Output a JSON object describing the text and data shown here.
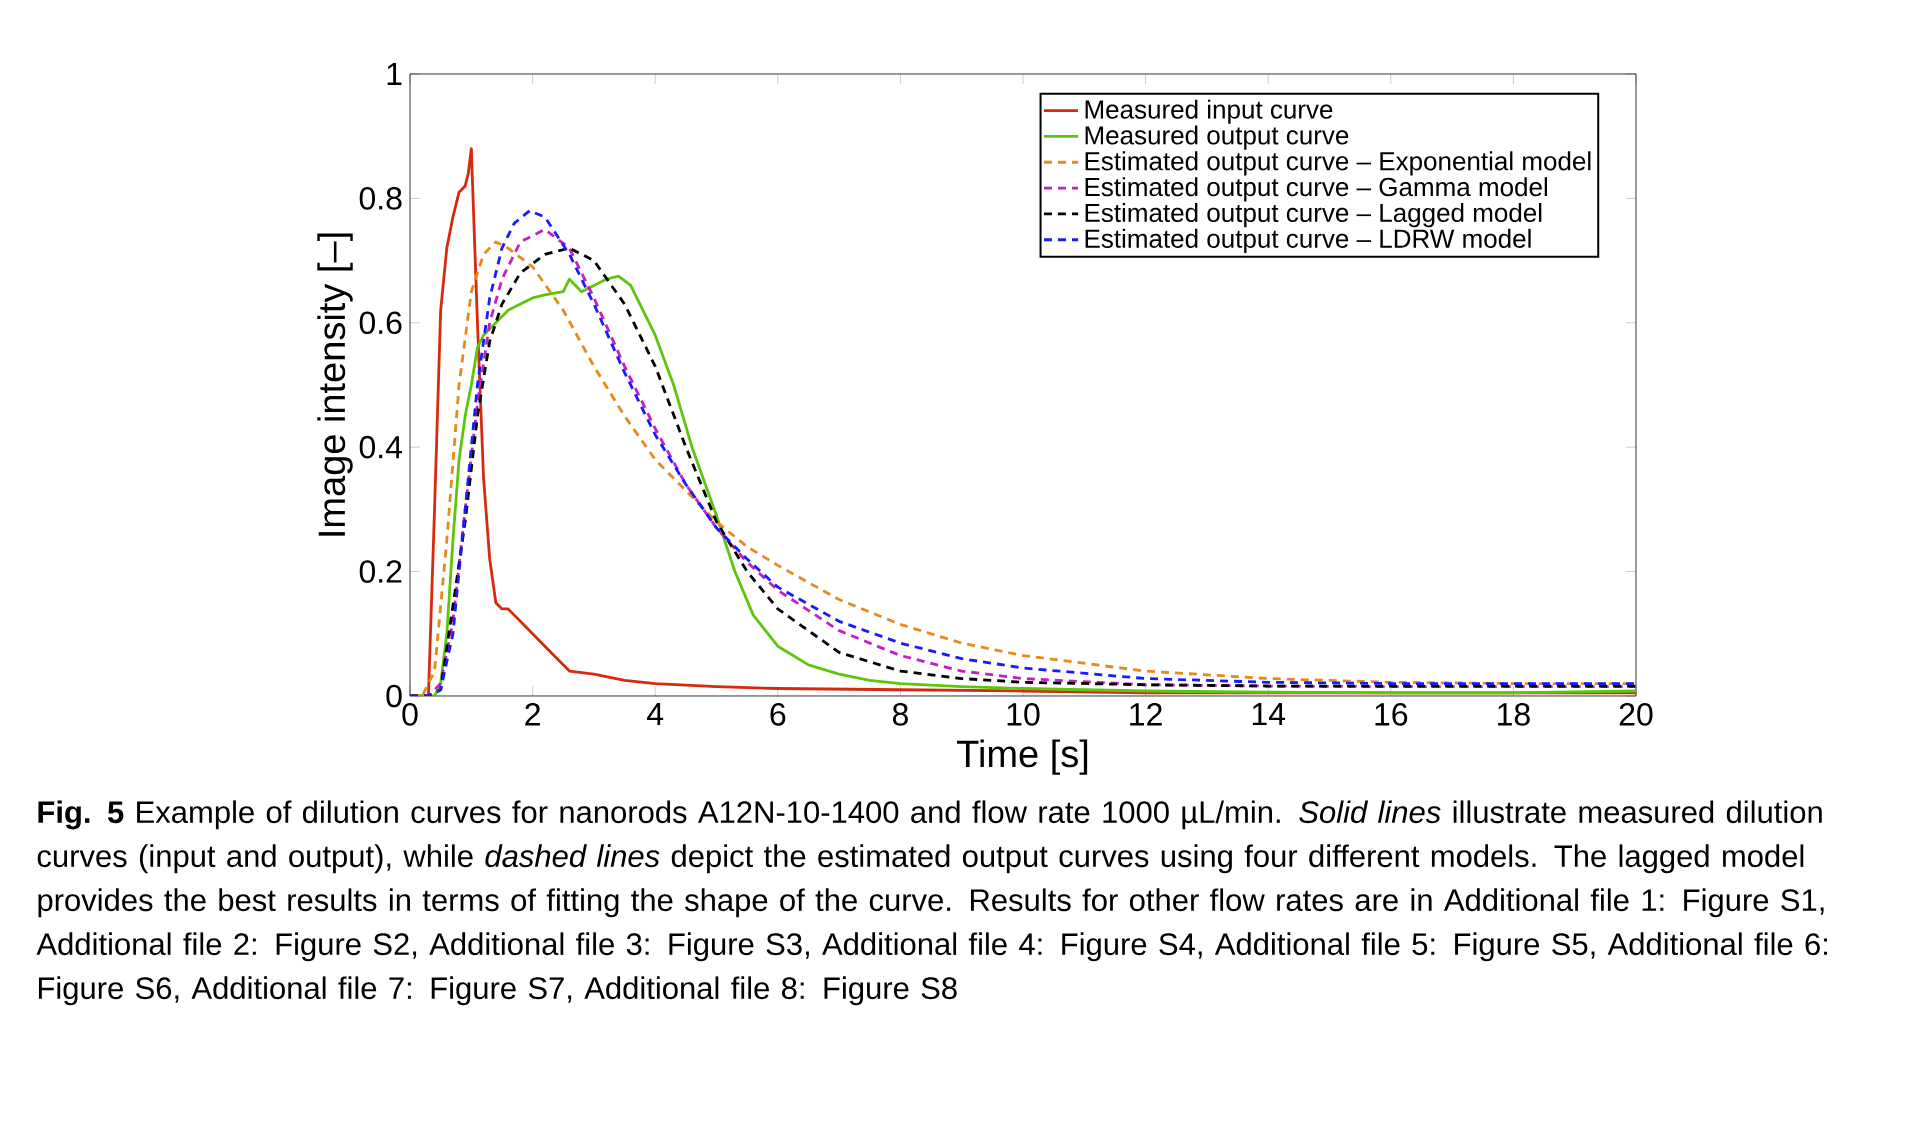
{
  "chart_data": {
    "type": "line",
    "xlabel": "Time [s]",
    "ylabel": "Image intensity [–]",
    "xlim": [
      0,
      20
    ],
    "ylim": [
      0,
      1
    ],
    "xticks": [
      0,
      2,
      4,
      6,
      8,
      10,
      12,
      14,
      16,
      18,
      20
    ],
    "yticks": [
      0,
      0.2,
      0.4,
      0.6,
      0.8,
      1
    ],
    "legend": "top right",
    "marker": "none",
    "series": [
      {
        "name": "Measured input curve",
        "color": "#d62a0e",
        "line_style": "solid",
        "x": [
          0,
          0.3,
          0.4,
          0.5,
          0.6,
          0.7,
          0.8,
          0.9,
          0.95,
          1.0,
          1.1,
          1.2,
          1.3,
          1.4,
          1.5,
          1.6,
          1.7,
          1.8,
          2.0,
          2.3,
          2.6,
          3.0,
          3.5,
          4,
          5,
          6,
          8,
          10,
          12,
          15,
          20
        ],
        "values": [
          0,
          0,
          0.3,
          0.62,
          0.72,
          0.77,
          0.81,
          0.82,
          0.84,
          0.88,
          0.6,
          0.35,
          0.22,
          0.15,
          0.14,
          0.14,
          0.13,
          0.12,
          0.1,
          0.07,
          0.04,
          0.035,
          0.025,
          0.02,
          0.015,
          0.012,
          0.01,
          0.008,
          0.005,
          0.005,
          0.005
        ]
      },
      {
        "name": "Measured output curve",
        "color": "#5ec50d",
        "line_style": "solid",
        "x": [
          0,
          0.4,
          0.5,
          0.6,
          0.7,
          0.8,
          0.9,
          1.0,
          1.1,
          1.2,
          1.4,
          1.6,
          1.8,
          2,
          2.2,
          2.5,
          2.6,
          2.8,
          3,
          3.2,
          3.4,
          3.6,
          3.8,
          4,
          4.3,
          4.6,
          5,
          5.3,
          5.6,
          6,
          6.5,
          7,
          7.5,
          8,
          9,
          10,
          12,
          14,
          16,
          18,
          20
        ],
        "values": [
          0,
          0,
          0.02,
          0.1,
          0.25,
          0.38,
          0.45,
          0.5,
          0.56,
          0.58,
          0.6,
          0.62,
          0.63,
          0.64,
          0.645,
          0.65,
          0.67,
          0.65,
          0.66,
          0.67,
          0.675,
          0.66,
          0.62,
          0.58,
          0.5,
          0.4,
          0.29,
          0.2,
          0.13,
          0.08,
          0.05,
          0.035,
          0.025,
          0.02,
          0.015,
          0.012,
          0.008,
          0.006,
          0.005,
          0.005,
          0.008
        ]
      },
      {
        "name": "Estimated output curve – Exponential model",
        "color": "#e8891a",
        "line_style": "dashed",
        "x": [
          0,
          0.2,
          0.4,
          0.6,
          0.8,
          1.0,
          1.2,
          1.4,
          1.6,
          2,
          2.5,
          3,
          3.5,
          4,
          4.5,
          5,
          5.5,
          6,
          7,
          8,
          9,
          10,
          12,
          14,
          16,
          18,
          20
        ],
        "values": [
          0,
          0,
          0.04,
          0.25,
          0.5,
          0.65,
          0.71,
          0.73,
          0.72,
          0.69,
          0.62,
          0.53,
          0.45,
          0.38,
          0.33,
          0.28,
          0.24,
          0.21,
          0.155,
          0.115,
          0.085,
          0.065,
          0.04,
          0.028,
          0.022,
          0.02,
          0.02
        ]
      },
      {
        "name": "Estimated output curve – Gamma model",
        "color": "#c51ec5",
        "line_style": "dashed",
        "x": [
          0,
          0.3,
          0.5,
          0.7,
          0.9,
          1.1,
          1.3,
          1.5,
          1.8,
          2.2,
          2.6,
          3,
          3.5,
          4,
          4.5,
          5,
          5.5,
          6,
          7,
          8,
          9,
          10,
          12,
          14,
          16,
          18,
          20
        ],
        "values": [
          0,
          0,
          0.02,
          0.12,
          0.3,
          0.47,
          0.6,
          0.67,
          0.73,
          0.75,
          0.72,
          0.64,
          0.53,
          0.43,
          0.34,
          0.27,
          0.215,
          0.17,
          0.105,
          0.065,
          0.04,
          0.028,
          0.018,
          0.016,
          0.015,
          0.015,
          0.015
        ]
      },
      {
        "name": "Estimated output curve – Lagged model",
        "color": "#000000",
        "line_style": "dashed",
        "x": [
          0,
          0.3,
          0.5,
          0.9,
          1.1,
          1.3,
          1.5,
          1.8,
          2.2,
          2.6,
          3,
          3.5,
          4,
          4.5,
          5,
          5.5,
          6,
          7,
          8,
          9,
          10,
          12,
          14,
          16,
          18,
          20
        ],
        "values": [
          0,
          0,
          0.01,
          0.28,
          0.45,
          0.57,
          0.63,
          0.68,
          0.71,
          0.72,
          0.7,
          0.63,
          0.53,
          0.4,
          0.28,
          0.2,
          0.14,
          0.07,
          0.04,
          0.028,
          0.022,
          0.018,
          0.016,
          0.016,
          0.016,
          0.016
        ]
      },
      {
        "name": "Estimated output curve – LDRW model",
        "color": "#1a1aff",
        "line_style": "dashed",
        "x": [
          0,
          0.3,
          0.5,
          0.7,
          0.9,
          1.1,
          1.3,
          1.5,
          1.7,
          1.95,
          2.2,
          2.6,
          3,
          3.5,
          4,
          4.5,
          5,
          5.5,
          6,
          7,
          8,
          9,
          10,
          12,
          14,
          16,
          18,
          20
        ],
        "values": [
          0,
          0,
          0.01,
          0.1,
          0.3,
          0.5,
          0.64,
          0.72,
          0.76,
          0.78,
          0.77,
          0.71,
          0.63,
          0.52,
          0.42,
          0.34,
          0.27,
          0.22,
          0.175,
          0.12,
          0.085,
          0.06,
          0.045,
          0.028,
          0.022,
          0.02,
          0.02,
          0.02
        ]
      }
    ],
    "annotations": [
      "**Fig. 5**  Example of dilution curves for nanorods A12N-10-1400 and flow rate 1000 µL/min. *Solid lines* illustrate measured dilution curves (input and output), while *dashed lines* depict the estimated output curves using four different models. The lagged model provides the best results in terms of fitting the shape of the curve. Results for other flow rates are in Additional file 1: Figure S1, Additional file 2: Figure S2, Additional file 3: Figure S3, Additional file 4: Figure S4, Additional file 5: Figure S5, Additional file 6: Figure S6, Additional file 7: Figure S7, Additional file 8: Figure S8"
    ]
  }
}
